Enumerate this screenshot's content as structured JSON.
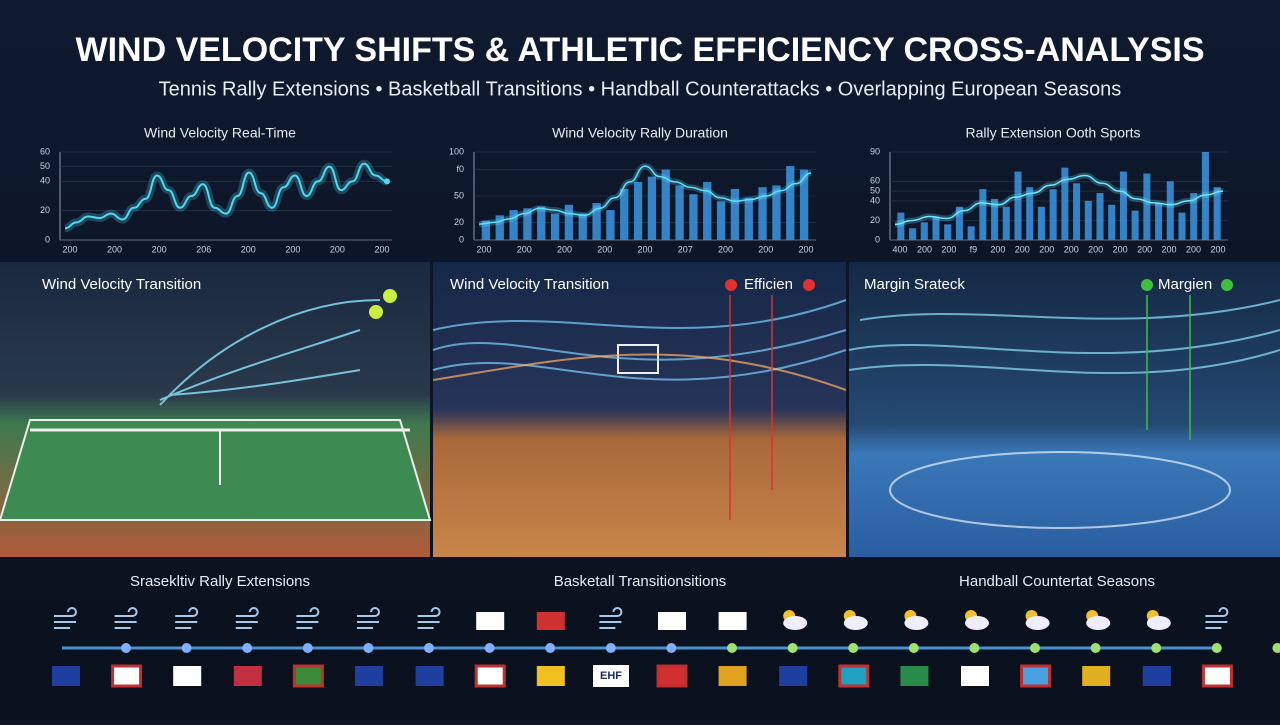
{
  "header": {
    "title": "WIND VELOCITY SHIFTS & ATHLETIC EFFICIENCY CROSS-ANALYSIS",
    "subtitle": "Tennis Rally Extensions • Basketball Transitions • Handball Counterattacks • Overlapping European Seasons"
  },
  "chart_data": [
    {
      "type": "line",
      "title": "Wind Velocity Real-Time",
      "color": "#4fd8f0",
      "ylim": [
        0,
        60
      ],
      "yticks": [
        0,
        20,
        40,
        50,
        60
      ],
      "xtick_labels": [
        "200",
        "200",
        "200",
        "206",
        "200",
        "200",
        "200",
        "200"
      ],
      "values": [
        8,
        12,
        16,
        15,
        18,
        14,
        22,
        28,
        44,
        34,
        22,
        30,
        38,
        22,
        18,
        30,
        46,
        32,
        22,
        36,
        44,
        30,
        40,
        50,
        34,
        40,
        52,
        44,
        40
      ]
    },
    {
      "type": "bar",
      "title": "Wind Velocity Rally Duration",
      "color": "#3a8fd8",
      "line_color": "#5fe0ff",
      "ylim": [
        0,
        100
      ],
      "yticks": [
        0,
        20,
        50,
        {
          "value": 80,
          "label": "f0"
        },
        100
      ],
      "xtick_labels": [
        "200",
        "200",
        "200",
        "200",
        "200",
        "207",
        "200",
        "200",
        "200"
      ],
      "values": [
        22,
        28,
        34,
        36,
        38,
        30,
        40,
        30,
        42,
        34,
        58,
        66,
        72,
        80,
        62,
        52,
        66,
        44,
        58,
        48,
        60,
        62,
        84,
        80
      ],
      "line_values": [
        18,
        20,
        24,
        30,
        36,
        34,
        30,
        28,
        36,
        48,
        66,
        84,
        72,
        66,
        60,
        56,
        48,
        44,
        46,
        50,
        56,
        64,
        76
      ]
    },
    {
      "type": "bar",
      "title": "Rally Extension Ooth Sports",
      "color": "#3a8fd8",
      "line_color": "#6fe6ff",
      "ylim": [
        0,
        90
      ],
      "yticks": [
        0,
        20,
        40,
        50,
        60,
        90
      ],
      "xtick_labels": [
        "400",
        "200",
        "200",
        "f9",
        "200",
        "200",
        "200",
        "200",
        "200",
        "200",
        "200",
        "200",
        "200",
        "200"
      ],
      "values": [
        28,
        12,
        18,
        24,
        16,
        34,
        14,
        52,
        42,
        34,
        70,
        54,
        34,
        52,
        74,
        58,
        40,
        48,
        36,
        70,
        30,
        68,
        38,
        60,
        28,
        48,
        90,
        54
      ],
      "line_values": [
        16,
        20,
        24,
        22,
        30,
        38,
        36,
        44,
        48,
        56,
        62,
        66,
        58,
        50,
        42,
        38,
        36,
        40,
        46,
        50
      ]
    }
  ],
  "panels": [
    {
      "label": "Wind Velocity Transition"
    },
    {
      "label": "Wind Velocity Transition",
      "tag": "Efficien"
    },
    {
      "label": "Margin Srateck",
      "tag": "Margien"
    }
  ],
  "timeline": {
    "sections": [
      "Srasekltiv Rally Extensions",
      "Basketall Transitionsitions",
      "Handball Countertat Seasons"
    ],
    "badge": "EHF"
  }
}
